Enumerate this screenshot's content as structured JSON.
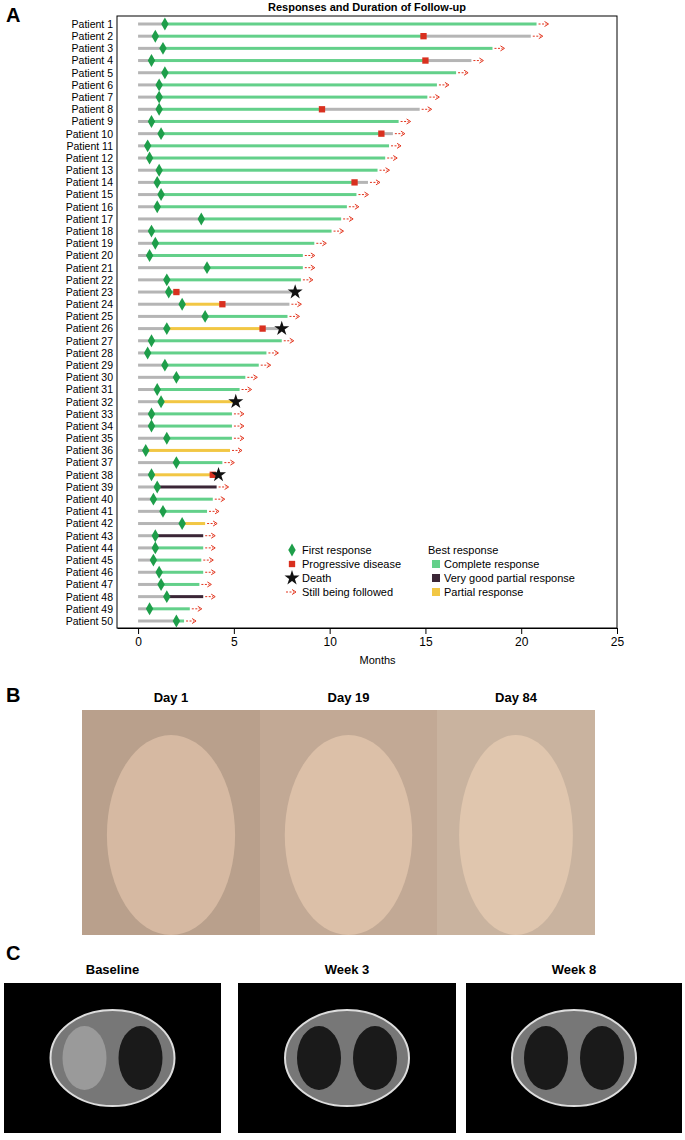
{
  "chart_data": {
    "type": "swimmer",
    "panel_label": "A",
    "title": "Responses and Duration of Follow-up",
    "x_label": "Months",
    "xlim": [
      -1.1,
      25
    ],
    "xticks": [
      0,
      5,
      10,
      15,
      20,
      25
    ],
    "categories": [
      "Patient 1",
      "Patient 2",
      "Patient 3",
      "Patient 4",
      "Patient 5",
      "Patient 6",
      "Patient 7",
      "Patient 8",
      "Patient 9",
      "Patient 10",
      "Patient 11",
      "Patient 12",
      "Patient 13",
      "Patient 14",
      "Patient 15",
      "Patient 16",
      "Patient 17",
      "Patient 18",
      "Patient 19",
      "Patient 20",
      "Patient 21",
      "Patient 22",
      "Patient 23",
      "Patient 24",
      "Patient 25",
      "Patient 26",
      "Patient 27",
      "Patient 28",
      "Patient 29",
      "Patient 30",
      "Patient 31",
      "Patient 32",
      "Patient 33",
      "Patient 34",
      "Patient 35",
      "Patient 36",
      "Patient 37",
      "Patient 38",
      "Patient 39",
      "Patient 40",
      "Patient 41",
      "Patient 42",
      "Patient 43",
      "Patient 44",
      "Patient 45",
      "Patient 46",
      "Patient 47",
      "Patient 48",
      "Patient 49",
      "Patient 50"
    ],
    "series": [
      {
        "name": "First response",
        "color": "#1e9e4a",
        "marker": "diamond",
        "values": [
          1.4,
          0.9,
          1.3,
          0.7,
          1.4,
          1.1,
          1.1,
          1.1,
          0.7,
          1.2,
          0.5,
          0.6,
          1.1,
          1.0,
          1.2,
          1.0,
          3.3,
          0.7,
          0.9,
          0.6,
          3.6,
          1.5,
          1.6,
          2.3,
          3.5,
          1.5,
          0.7,
          0.5,
          1.4,
          2.0,
          1.0,
          1.2,
          0.7,
          0.7,
          1.5,
          0.4,
          2.0,
          0.7,
          1.0,
          0.8,
          1.3,
          2.3,
          0.9,
          0.9,
          0.8,
          1.1,
          1.2,
          1.5,
          0.6,
          2.0
        ]
      },
      {
        "name": "Progressive disease",
        "color": "#d9301f",
        "marker": "square",
        "values": [
          null,
          14.9,
          null,
          15.0,
          null,
          null,
          null,
          9.6,
          null,
          12.7,
          null,
          null,
          null,
          11.3,
          null,
          null,
          null,
          null,
          null,
          null,
          null,
          null,
          2.0,
          4.4,
          null,
          6.5,
          null,
          null,
          null,
          null,
          null,
          null,
          null,
          null,
          null,
          null,
          null,
          3.9,
          null,
          null,
          null,
          null,
          null,
          null,
          null,
          null,
          null,
          null,
          null,
          null
        ]
      },
      {
        "name": "Death",
        "color": "#111111",
        "marker": "star",
        "values": [
          null,
          null,
          null,
          null,
          null,
          null,
          null,
          null,
          null,
          null,
          null,
          null,
          null,
          null,
          null,
          null,
          null,
          null,
          null,
          null,
          null,
          null,
          8.2,
          null,
          null,
          7.5,
          null,
          null,
          null,
          null,
          null,
          5.1,
          null,
          null,
          null,
          null,
          null,
          4.2,
          null,
          null,
          null,
          null,
          null,
          null,
          null,
          null,
          null,
          null,
          null,
          null
        ]
      },
      {
        "name": "Still being followed",
        "color": "#e2341d",
        "marker": "arrow",
        "values": [
          20.8,
          20.5,
          18.5,
          17.4,
          16.6,
          15.6,
          15.1,
          14.7,
          13.6,
          13.3,
          13.1,
          12.9,
          12.5,
          12.0,
          11.4,
          10.9,
          10.6,
          10.1,
          9.2,
          8.6,
          8.6,
          8.5,
          null,
          7.9,
          7.8,
          null,
          7.5,
          6.7,
          6.3,
          5.6,
          5.3,
          null,
          4.9,
          4.9,
          4.9,
          4.8,
          4.4,
          null,
          4.1,
          3.9,
          3.6,
          3.5,
          3.4,
          3.4,
          3.3,
          3.4,
          3.2,
          3.4,
          2.7,
          2.4
        ]
      }
    ],
    "best_response": {
      "title": "Best response",
      "names": [
        "Complete response",
        "Very good partial response",
        "Partial response"
      ],
      "colors": [
        "#63d08a",
        "#3b2636",
        "#f2c744"
      ],
      "values": [
        "Complete response",
        "Complete response",
        "Complete response",
        "Complete response",
        "Complete response",
        "Complete response",
        "Complete response",
        "Complete response",
        "Complete response",
        "Complete response",
        "Complete response",
        "Complete response",
        "Complete response",
        "Complete response",
        "Complete response",
        "Complete response",
        "Complete response",
        "Complete response",
        "Complete response",
        "Complete response",
        "Complete response",
        "Complete response",
        "Complete response",
        "Partial response",
        "Complete response",
        "Partial response",
        "Complete response",
        "Complete response",
        "Complete response",
        "Complete response",
        "Complete response",
        "Partial response",
        "Complete response",
        "Complete response",
        "Complete response",
        "Partial response",
        "Complete response",
        "Partial response",
        "Very good partial response",
        "Complete response",
        "Complete response",
        "Partial response",
        "Very good partial response",
        "Complete response",
        "Complete response",
        "Complete response",
        "Complete response",
        "Very good partial response",
        "Complete response",
        "Complete response"
      ]
    }
  },
  "photos": {
    "panel_label": "B",
    "captions": [
      "Day 1",
      "Day 19",
      "Day 84"
    ]
  },
  "scans": {
    "panel_label": "C",
    "captions": [
      "Baseline",
      "Week 3",
      "Week 8"
    ]
  }
}
